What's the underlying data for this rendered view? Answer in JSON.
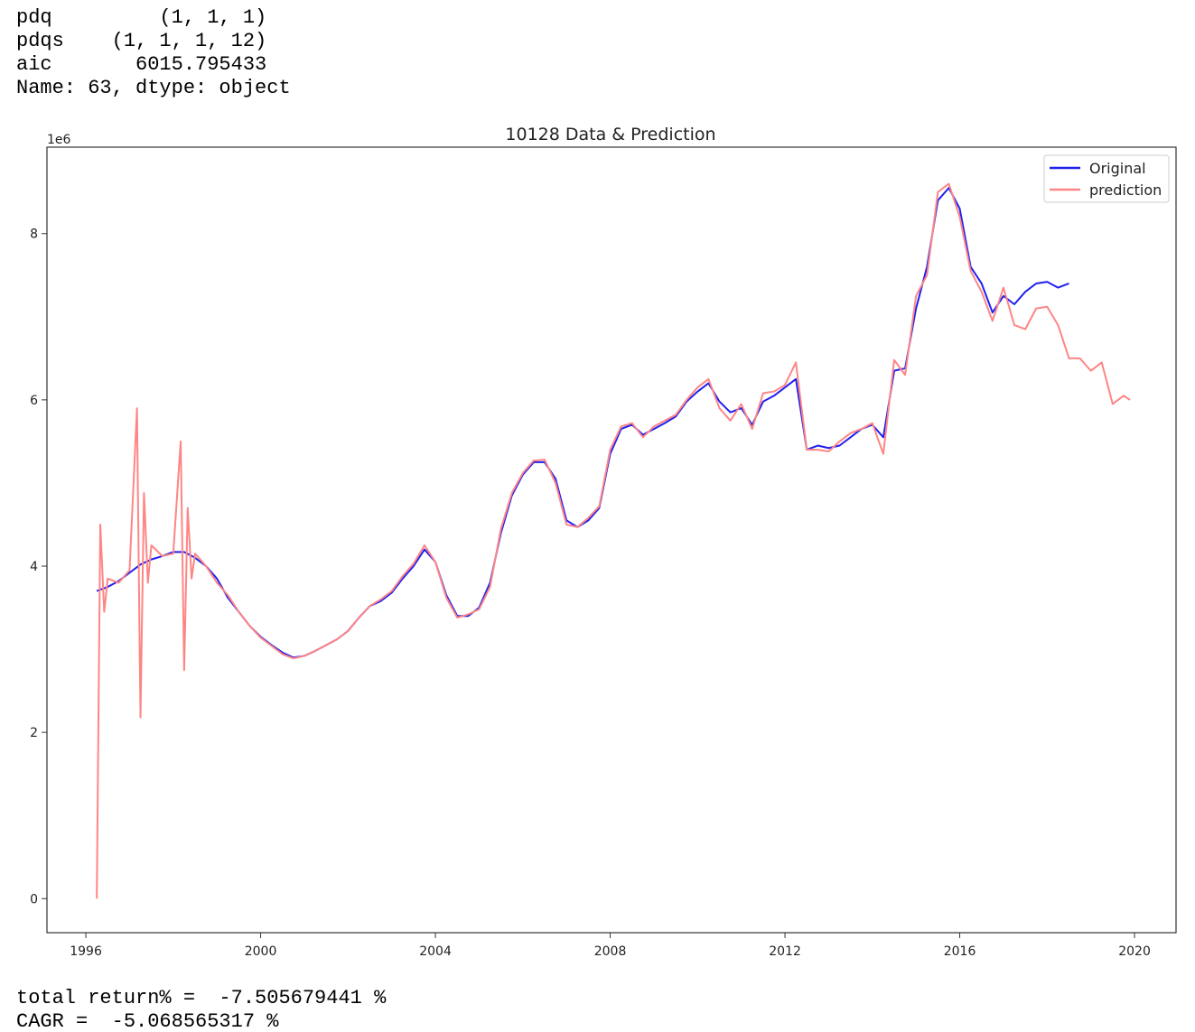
{
  "output_lines": [
    "pdq         (1, 1, 1)",
    "pdqs    (1, 1, 1, 12)",
    "aic       6015.795433",
    "Name: 63, dtype: object"
  ],
  "chart_data": {
    "type": "line",
    "title": "10128 Data & Prediction",
    "offset_label": "1e6",
    "xlim": [
      1995.11,
      2020.95
    ],
    "xticks": [
      1996,
      2000,
      2004,
      2008,
      2012,
      2016,
      2020
    ],
    "ylim": [
      -0.41,
      9.04
    ],
    "yticks": [
      0,
      2,
      4,
      6,
      8
    ],
    "grid": false,
    "legend": "upper right",
    "series": [
      {
        "name": "Original",
        "color": "#2020f0",
        "x": [
          1996.25,
          1996.5,
          1996.75,
          1997.0,
          1997.25,
          1997.5,
          1997.75,
          1998.0,
          1998.25,
          1998.5,
          1998.75,
          1999.0,
          1999.25,
          1999.5,
          1999.75,
          2000.0,
          2000.25,
          2000.5,
          2000.75,
          2001.0,
          2001.25,
          2001.5,
          2001.75,
          2002.0,
          2002.25,
          2002.5,
          2002.75,
          2003.0,
          2003.25,
          2003.5,
          2003.75,
          2004.0,
          2004.25,
          2004.5,
          2004.75,
          2005.0,
          2005.25,
          2005.5,
          2005.75,
          2006.0,
          2006.25,
          2006.5,
          2006.75,
          2007.0,
          2007.25,
          2007.5,
          2007.75,
          2008.0,
          2008.25,
          2008.5,
          2008.75,
          2009.0,
          2009.25,
          2009.5,
          2009.75,
          2010.0,
          2010.25,
          2010.5,
          2010.75,
          2011.0,
          2011.25,
          2011.5,
          2011.75,
          2012.0,
          2012.25,
          2012.5,
          2012.75,
          2013.0,
          2013.25,
          2013.5,
          2013.75,
          2014.0,
          2014.25,
          2014.5,
          2014.75,
          2015.0,
          2015.25,
          2015.5,
          2015.75,
          2016.0,
          2016.25,
          2016.5,
          2016.75,
          2017.0,
          2017.25,
          2017.5,
          2017.75,
          2018.0,
          2018.25,
          2018.5
        ],
        "values": [
          3.7,
          3.75,
          3.82,
          3.92,
          4.02,
          4.08,
          4.12,
          4.17,
          4.17,
          4.1,
          4.0,
          3.85,
          3.62,
          3.45,
          3.28,
          3.15,
          3.05,
          2.96,
          2.9,
          2.92,
          2.98,
          3.05,
          3.12,
          3.22,
          3.38,
          3.52,
          3.58,
          3.68,
          3.85,
          4.0,
          4.2,
          4.05,
          3.65,
          3.4,
          3.4,
          3.5,
          3.8,
          4.4,
          4.85,
          5.1,
          5.25,
          5.25,
          5.05,
          4.55,
          4.47,
          4.55,
          4.7,
          5.35,
          5.65,
          5.7,
          5.58,
          5.65,
          5.72,
          5.8,
          5.98,
          6.1,
          6.2,
          5.98,
          5.85,
          5.9,
          5.7,
          5.98,
          6.05,
          6.15,
          6.25,
          5.4,
          5.45,
          5.42,
          5.45,
          5.55,
          5.65,
          5.7,
          5.55,
          6.35,
          6.38,
          7.1,
          7.6,
          8.4,
          8.55,
          8.3,
          7.6,
          7.4,
          7.05,
          7.25,
          7.15,
          7.3,
          7.4,
          7.42,
          7.35,
          7.4
        ]
      },
      {
        "name": "prediction",
        "color": "#ff8585",
        "x": [
          1996.25,
          1996.33,
          1996.42,
          1996.5,
          1996.75,
          1997.0,
          1997.17,
          1997.25,
          1997.33,
          1997.42,
          1997.5,
          1997.75,
          1998.0,
          1998.17,
          1998.25,
          1998.33,
          1998.42,
          1998.5,
          1998.75,
          1999.0,
          1999.25,
          1999.5,
          1999.75,
          2000.0,
          2000.25,
          2000.5,
          2000.75,
          2001.0,
          2001.25,
          2001.5,
          2001.75,
          2002.0,
          2002.25,
          2002.5,
          2002.75,
          2003.0,
          2003.25,
          2003.5,
          2003.75,
          2004.0,
          2004.25,
          2004.5,
          2004.75,
          2005.0,
          2005.25,
          2005.5,
          2005.75,
          2006.0,
          2006.25,
          2006.5,
          2006.75,
          2007.0,
          2007.25,
          2007.5,
          2007.75,
          2008.0,
          2008.25,
          2008.5,
          2008.75,
          2009.0,
          2009.25,
          2009.5,
          2009.75,
          2010.0,
          2010.25,
          2010.5,
          2010.75,
          2011.0,
          2011.25,
          2011.5,
          2011.75,
          2012.0,
          2012.25,
          2012.5,
          2012.75,
          2013.0,
          2013.25,
          2013.5,
          2013.75,
          2014.0,
          2014.25,
          2014.5,
          2014.75,
          2015.0,
          2015.25,
          2015.5,
          2015.75,
          2016.0,
          2016.25,
          2016.5,
          2016.75,
          2017.0,
          2017.25,
          2017.5,
          2017.75,
          2018.0,
          2018.25,
          2018.5,
          2018.75,
          2019.0,
          2019.25,
          2019.5,
          2019.75,
          2019.9
        ],
        "values": [
          0,
          4.5,
          3.45,
          3.85,
          3.8,
          3.95,
          5.9,
          2.18,
          4.88,
          3.8,
          4.25,
          4.12,
          4.15,
          5.5,
          2.75,
          4.7,
          3.85,
          4.15,
          4.0,
          3.8,
          3.65,
          3.45,
          3.28,
          3.14,
          3.04,
          2.94,
          2.89,
          2.92,
          2.98,
          3.05,
          3.12,
          3.22,
          3.38,
          3.52,
          3.6,
          3.7,
          3.88,
          4.03,
          4.25,
          4.05,
          3.62,
          3.38,
          3.42,
          3.48,
          3.75,
          4.45,
          4.88,
          5.12,
          5.27,
          5.28,
          5.0,
          4.5,
          4.47,
          4.58,
          4.72,
          5.4,
          5.68,
          5.72,
          5.55,
          5.68,
          5.75,
          5.82,
          6.0,
          6.15,
          6.25,
          5.9,
          5.75,
          5.95,
          5.65,
          6.08,
          6.1,
          6.18,
          6.45,
          5.4,
          5.4,
          5.38,
          5.5,
          5.6,
          5.65,
          5.72,
          5.35,
          6.48,
          6.3,
          7.25,
          7.5,
          8.5,
          8.6,
          8.2,
          7.55,
          7.3,
          6.95,
          7.35,
          6.9,
          6.85,
          7.1,
          7.12,
          6.9,
          6.5,
          6.5,
          6.35,
          6.45,
          5.95,
          6.05,
          6.0
        ]
      }
    ]
  },
  "footer_lines": [
    "total return% =  -7.505679441 %",
    "CAGR =  -5.068565317 %"
  ]
}
